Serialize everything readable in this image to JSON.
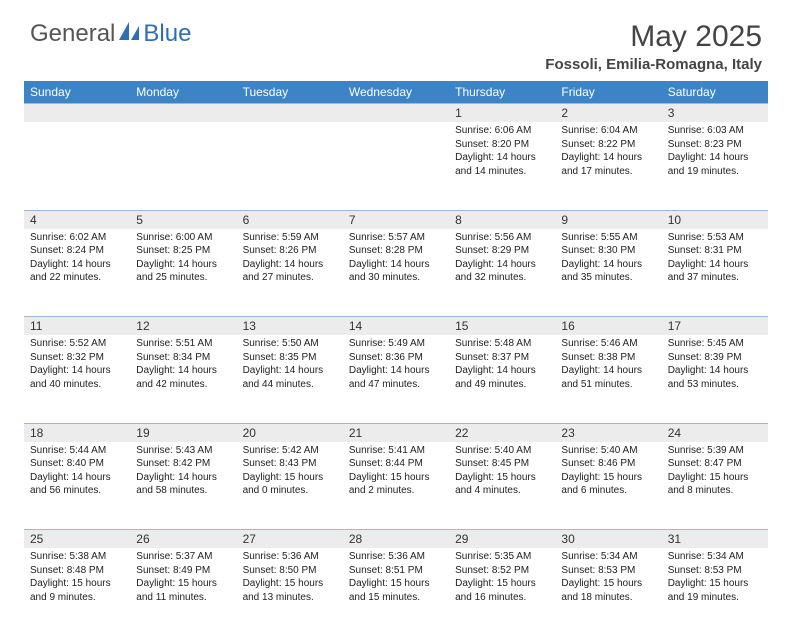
{
  "logo": {
    "general": "General",
    "blue": "Blue"
  },
  "title": "May 2025",
  "location": "Fossoli, Emilia-Romagna, Italy",
  "header_color": "#3c84c6",
  "daynum_bg": "#ececec",
  "border_color": "#9eb9d3",
  "text_color": "#222222",
  "weekdays": [
    "Sunday",
    "Monday",
    "Tuesday",
    "Wednesday",
    "Thursday",
    "Friday",
    "Saturday"
  ],
  "weeks": [
    [
      null,
      null,
      null,
      null,
      {
        "n": "1",
        "sr": "6:06 AM",
        "ss": "8:20 PM",
        "dl": "14 hours and 14 minutes."
      },
      {
        "n": "2",
        "sr": "6:04 AM",
        "ss": "8:22 PM",
        "dl": "14 hours and 17 minutes."
      },
      {
        "n": "3",
        "sr": "6:03 AM",
        "ss": "8:23 PM",
        "dl": "14 hours and 19 minutes."
      }
    ],
    [
      {
        "n": "4",
        "sr": "6:02 AM",
        "ss": "8:24 PM",
        "dl": "14 hours and 22 minutes."
      },
      {
        "n": "5",
        "sr": "6:00 AM",
        "ss": "8:25 PM",
        "dl": "14 hours and 25 minutes."
      },
      {
        "n": "6",
        "sr": "5:59 AM",
        "ss": "8:26 PM",
        "dl": "14 hours and 27 minutes."
      },
      {
        "n": "7",
        "sr": "5:57 AM",
        "ss": "8:28 PM",
        "dl": "14 hours and 30 minutes."
      },
      {
        "n": "8",
        "sr": "5:56 AM",
        "ss": "8:29 PM",
        "dl": "14 hours and 32 minutes."
      },
      {
        "n": "9",
        "sr": "5:55 AM",
        "ss": "8:30 PM",
        "dl": "14 hours and 35 minutes."
      },
      {
        "n": "10",
        "sr": "5:53 AM",
        "ss": "8:31 PM",
        "dl": "14 hours and 37 minutes."
      }
    ],
    [
      {
        "n": "11",
        "sr": "5:52 AM",
        "ss": "8:32 PM",
        "dl": "14 hours and 40 minutes."
      },
      {
        "n": "12",
        "sr": "5:51 AM",
        "ss": "8:34 PM",
        "dl": "14 hours and 42 minutes."
      },
      {
        "n": "13",
        "sr": "5:50 AM",
        "ss": "8:35 PM",
        "dl": "14 hours and 44 minutes."
      },
      {
        "n": "14",
        "sr": "5:49 AM",
        "ss": "8:36 PM",
        "dl": "14 hours and 47 minutes."
      },
      {
        "n": "15",
        "sr": "5:48 AM",
        "ss": "8:37 PM",
        "dl": "14 hours and 49 minutes."
      },
      {
        "n": "16",
        "sr": "5:46 AM",
        "ss": "8:38 PM",
        "dl": "14 hours and 51 minutes."
      },
      {
        "n": "17",
        "sr": "5:45 AM",
        "ss": "8:39 PM",
        "dl": "14 hours and 53 minutes."
      }
    ],
    [
      {
        "n": "18",
        "sr": "5:44 AM",
        "ss": "8:40 PM",
        "dl": "14 hours and 56 minutes."
      },
      {
        "n": "19",
        "sr": "5:43 AM",
        "ss": "8:42 PM",
        "dl": "14 hours and 58 minutes."
      },
      {
        "n": "20",
        "sr": "5:42 AM",
        "ss": "8:43 PM",
        "dl": "15 hours and 0 minutes."
      },
      {
        "n": "21",
        "sr": "5:41 AM",
        "ss": "8:44 PM",
        "dl": "15 hours and 2 minutes."
      },
      {
        "n": "22",
        "sr": "5:40 AM",
        "ss": "8:45 PM",
        "dl": "15 hours and 4 minutes."
      },
      {
        "n": "23",
        "sr": "5:40 AM",
        "ss": "8:46 PM",
        "dl": "15 hours and 6 minutes."
      },
      {
        "n": "24",
        "sr": "5:39 AM",
        "ss": "8:47 PM",
        "dl": "15 hours and 8 minutes."
      }
    ],
    [
      {
        "n": "25",
        "sr": "5:38 AM",
        "ss": "8:48 PM",
        "dl": "15 hours and 9 minutes."
      },
      {
        "n": "26",
        "sr": "5:37 AM",
        "ss": "8:49 PM",
        "dl": "15 hours and 11 minutes."
      },
      {
        "n": "27",
        "sr": "5:36 AM",
        "ss": "8:50 PM",
        "dl": "15 hours and 13 minutes."
      },
      {
        "n": "28",
        "sr": "5:36 AM",
        "ss": "8:51 PM",
        "dl": "15 hours and 15 minutes."
      },
      {
        "n": "29",
        "sr": "5:35 AM",
        "ss": "8:52 PM",
        "dl": "15 hours and 16 minutes."
      },
      {
        "n": "30",
        "sr": "5:34 AM",
        "ss": "8:53 PM",
        "dl": "15 hours and 18 minutes."
      },
      {
        "n": "31",
        "sr": "5:34 AM",
        "ss": "8:53 PM",
        "dl": "15 hours and 19 minutes."
      }
    ]
  ],
  "labels": {
    "sunrise": "Sunrise: ",
    "sunset": "Sunset: ",
    "daylight": "Daylight: "
  }
}
